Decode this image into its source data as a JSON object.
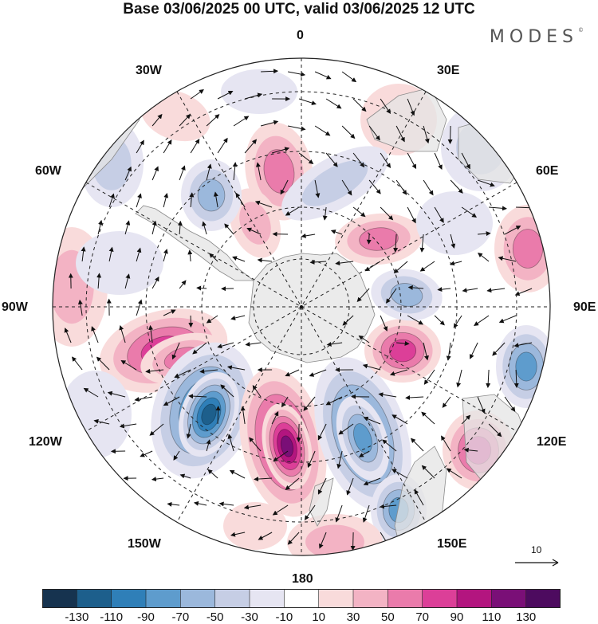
{
  "title": "Base 03/06/2025 00 UTC, valid 03/06/2025 12 UTC",
  "brand": "MODES",
  "brand_mark": "©",
  "grid_labels": {
    "lon_0": "0",
    "lon_30e": "30E",
    "lon_60e": "60E",
    "lon_90e": "90E",
    "lon_120e": "120E",
    "lon_150e": "150E",
    "lon_180": "180",
    "lon_150w": "150W",
    "lon_120w": "120W",
    "lon_90w": "90W",
    "lon_60w": "60W",
    "lon_30w": "30W"
  },
  "reference_vector": {
    "label": "10"
  },
  "colorbar": {
    "ticks": [
      "-130",
      "-110",
      "-90",
      "-70",
      "-50",
      "-30",
      "-10",
      "10",
      "30",
      "50",
      "70",
      "90",
      "110",
      "130"
    ],
    "colors": [
      "#16334f",
      "#1d5f8c",
      "#2f7fb8",
      "#5e9ccd",
      "#9bb8dc",
      "#c6cee5",
      "#e6e5f2",
      "#ffffff",
      "#f9dbdb",
      "#f3b3c4",
      "#ea7bab",
      "#dc3f98",
      "#b3157f",
      "#7a0f77",
      "#4d0b5f"
    ]
  },
  "map": {
    "projection": "south polar stereographic",
    "continent_color": "#e8e8e8",
    "graticule": "dashed",
    "field": "anomaly (shaded) with wind vectors"
  }
}
